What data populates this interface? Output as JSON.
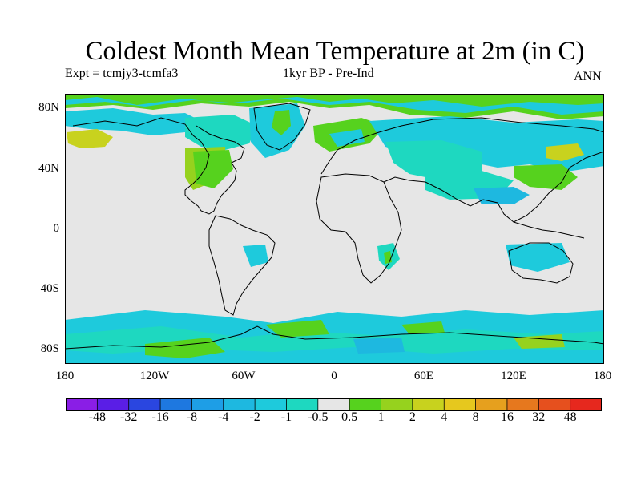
{
  "title": "Coldest Month Mean Temperature at 2m (in C)",
  "subtitle_left": "Expt = tcmjy3-tcmfa3",
  "subtitle_center": "1kyr BP - Pre-Ind",
  "subtitle_right": "ANN",
  "lat_labels": [
    "80N",
    "40N",
    "0",
    "40S",
    "80S"
  ],
  "lon_labels": [
    "180",
    "120W",
    "60W",
    "0",
    "60E",
    "120E",
    "180"
  ],
  "colorbar": {
    "labels": [
      "-48",
      "-32",
      "-16",
      "-8",
      "-4",
      "-2",
      "-1",
      "-0.5",
      "0.5",
      "1",
      "2",
      "4",
      "8",
      "16",
      "32",
      "48"
    ],
    "colors": [
      "#8a1ee6",
      "#5a1ee6",
      "#2a46e0",
      "#1e78e0",
      "#1e9ee6",
      "#1eb8e0",
      "#1ecadc",
      "#1ed8c0",
      "#e6e6e6",
      "#56d21e",
      "#96d21e",
      "#c8d21e",
      "#e6c81e",
      "#e6a01e",
      "#e6781e",
      "#e6501e",
      "#e6281e"
    ]
  },
  "map_colors": {
    "background": "#e6e6e6",
    "cool_light": "#1ed8c0",
    "cool_mid": "#1ecadc",
    "cool_deep": "#1eb8e0",
    "warm_light": "#56d21e",
    "warm_mid": "#96d21e",
    "warm_deep": "#c8d21e"
  }
}
